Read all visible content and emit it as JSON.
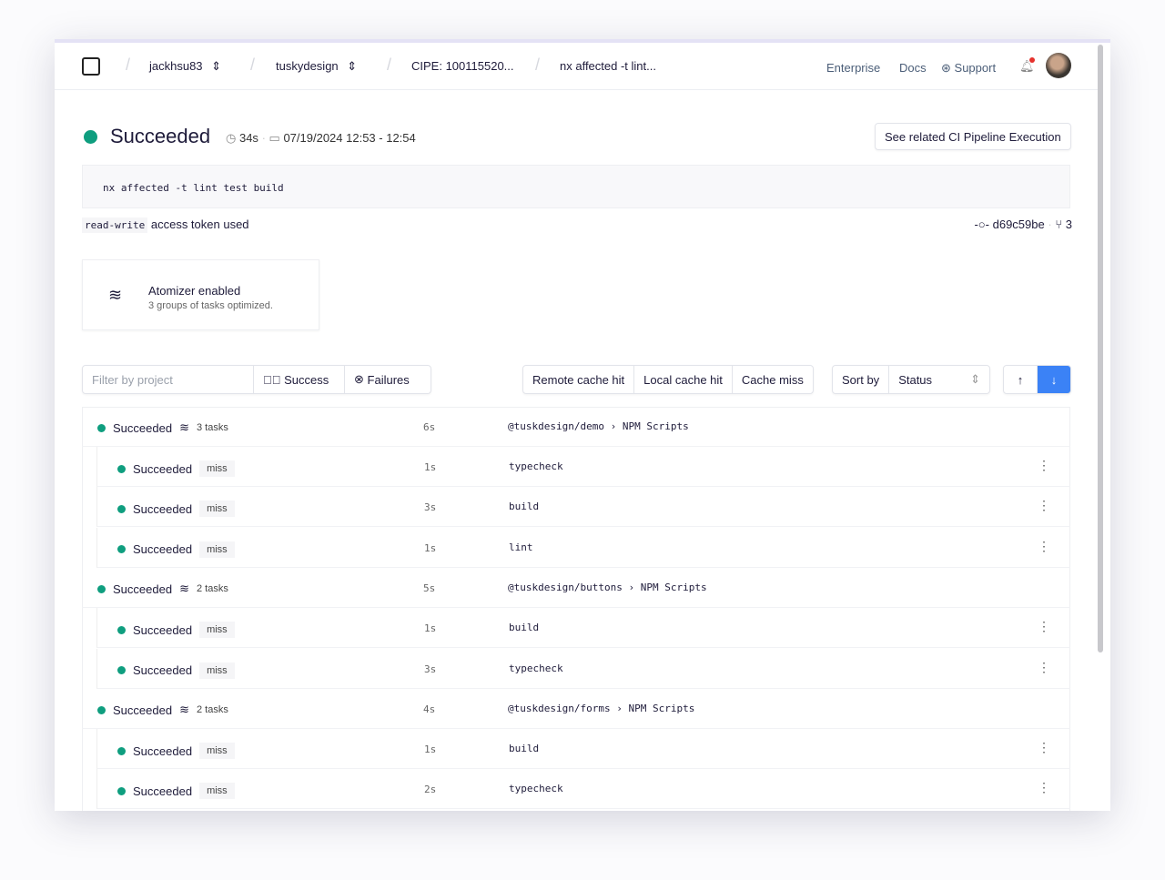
{
  "nav": {
    "breadcrumbs": [
      "jackhsu83",
      "tuskydesign",
      "CIPE: 100115520...",
      "nx affected -t lint..."
    ],
    "links": {
      "enterprise": "Enterprise",
      "docs": "Docs",
      "support": "Support"
    }
  },
  "header": {
    "status": "Succeeded",
    "duration": "34s",
    "date": "07/19/2024 12:53 - 12:54",
    "related_button": "See related CI Pipeline Execution",
    "command": "nx affected -t lint test build",
    "token_code": "read-write",
    "token_text": "access token used",
    "commit": "d69c59be",
    "branches": "3"
  },
  "atomizer": {
    "title": "Atomizer enabled",
    "subtitle": "3 groups of tasks optimized."
  },
  "filters": {
    "project_placeholder": "Filter by project",
    "success": "Success",
    "failures": "Failures",
    "remote": "Remote cache hit",
    "local": "Local cache hit",
    "miss": "Cache miss",
    "sort_label": "Sort by",
    "sort_value": "Status"
  },
  "groups": [
    {
      "status": "Succeeded",
      "tasks": "3 tasks",
      "duration": "6s",
      "project": "@tuskdesign/demo",
      "target": "NPM Scripts",
      "items": [
        {
          "status": "Succeeded",
          "cache": "miss",
          "duration": "1s",
          "name": "typecheck"
        },
        {
          "status": "Succeeded",
          "cache": "miss",
          "duration": "3s",
          "name": "build"
        },
        {
          "status": "Succeeded",
          "cache": "miss",
          "duration": "1s",
          "name": "lint"
        }
      ]
    },
    {
      "status": "Succeeded",
      "tasks": "2 tasks",
      "duration": "5s",
      "project": "@tuskdesign/buttons",
      "target": "NPM Scripts",
      "items": [
        {
          "status": "Succeeded",
          "cache": "miss",
          "duration": "1s",
          "name": "build"
        },
        {
          "status": "Succeeded",
          "cache": "miss",
          "duration": "3s",
          "name": "typecheck"
        }
      ]
    },
    {
      "status": "Succeeded",
      "tasks": "2 tasks",
      "duration": "4s",
      "project": "@tuskdesign/forms",
      "target": "NPM Scripts",
      "items": [
        {
          "status": "Succeeded",
          "cache": "miss",
          "duration": "1s",
          "name": "build"
        },
        {
          "status": "Succeeded",
          "cache": "miss",
          "duration": "2s",
          "name": "typecheck"
        }
      ]
    }
  ],
  "colors": {
    "success": "#0f9e7f",
    "accent": "#3b82f6",
    "notification": "#e5322d"
  }
}
